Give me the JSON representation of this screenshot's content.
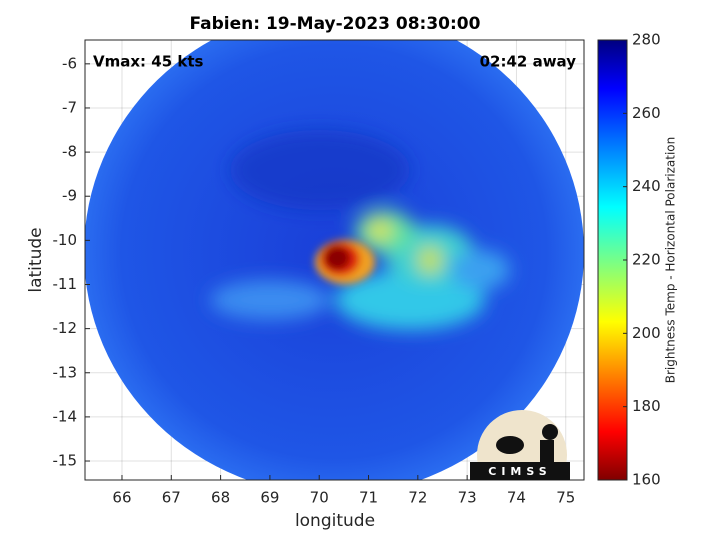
{
  "chart_data": {
    "type": "image",
    "title": "Fabien: 19-May-2023 08:30:00",
    "xlabel": "longitude",
    "ylabel": "latitude",
    "xlim": [
      65.25,
      75.37
    ],
    "ylim": [
      -15.43,
      -5.46
    ],
    "xticks": [
      66,
      67,
      68,
      69,
      70,
      71,
      72,
      73,
      74,
      75
    ],
    "yticks": [
      -15,
      -14,
      -13,
      -12,
      -11,
      -10,
      -9,
      -8,
      -7,
      -6
    ],
    "grid": true,
    "annotations": [
      "Vmax: 45 kts",
      "02:42 away"
    ],
    "logo_text": "CIMSS",
    "colorbar": {
      "label": "Brightness Temp - Horizontal Polarization",
      "lim": [
        160,
        280
      ],
      "ticks": [
        160,
        180,
        200,
        220,
        240,
        260,
        280
      ],
      "colormap": "jet"
    }
  }
}
